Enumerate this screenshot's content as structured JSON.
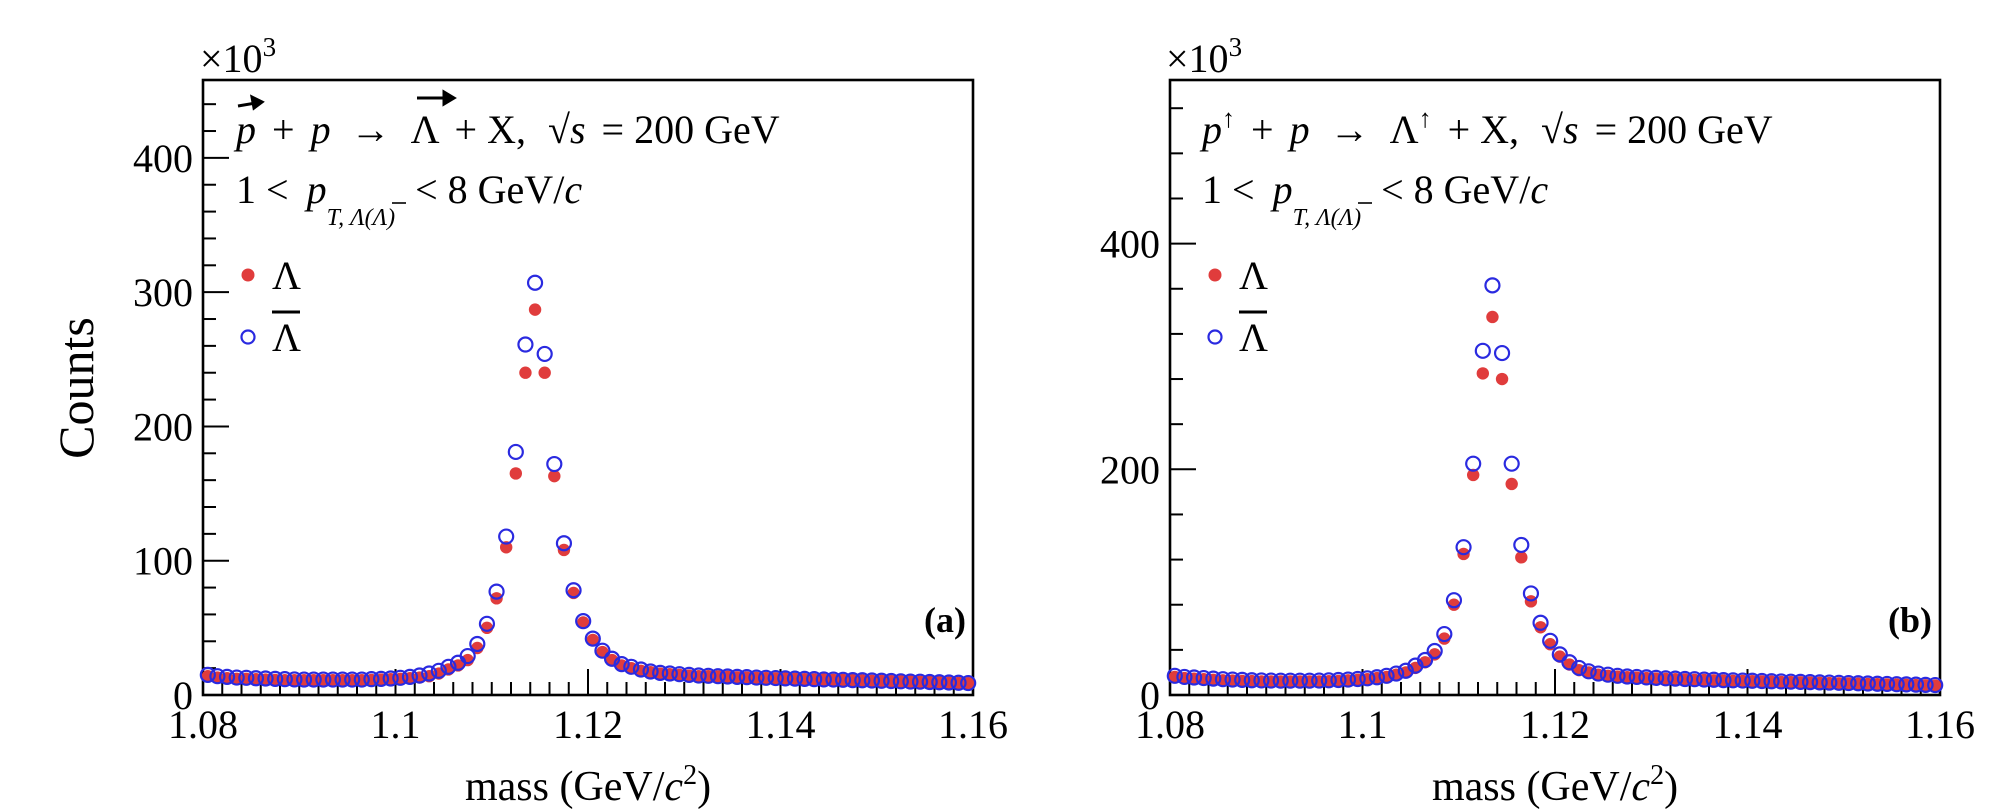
{
  "chart_data": [
    {
      "type": "scatter",
      "panel_label": "(a)",
      "multiplier": "×10",
      "multiplier_exp": "3",
      "ylabel": "Counts",
      "xlabel_main": "mass (GeV/",
      "xlabel_italic": "c",
      "xlabel_exp": "2",
      "xlabel_close": ")",
      "annotation1": {
        "p1": "p",
        "plus1": "+",
        "p2": "p",
        "arrow": "→",
        "lam": "Λ",
        "rest": "+ X,",
        "sqrt": "√",
        "s": "s",
        "energy": "= 200 GeV"
      },
      "annotation2": {
        "pre": "1 <",
        "p": "p",
        "sub": "T, Λ(Λ)",
        "post": "< 8 GeV/",
        "c": "c"
      },
      "xlim": [
        1.08,
        1.16
      ],
      "ylim": [
        0,
        458
      ],
      "xticks": [
        1.08,
        1.1,
        1.12,
        1.14,
        1.16
      ],
      "xtick_labels": [
        "1.08",
        "1.1",
        "1.12",
        "1.14",
        "1.16"
      ],
      "yticks": [
        0,
        100,
        200,
        300,
        400
      ],
      "ytick_labels": [
        "0",
        "100",
        "200",
        "300",
        "400"
      ],
      "legend": {
        "position": "top-left",
        "entries": [
          "Λ",
          "Λ"
        ]
      },
      "x": [
        1.0805,
        1.0815,
        1.0825,
        1.0835,
        1.0845,
        1.0855,
        1.0865,
        1.0875,
        1.0885,
        1.0895,
        1.0905,
        1.0915,
        1.0925,
        1.0935,
        1.0945,
        1.0955,
        1.0965,
        1.0975,
        1.0985,
        1.0995,
        1.1005,
        1.1015,
        1.1025,
        1.1035,
        1.1045,
        1.1055,
        1.1065,
        1.1075,
        1.1085,
        1.1095,
        1.1105,
        1.1115,
        1.1125,
        1.1135,
        1.1145,
        1.1155,
        1.1165,
        1.1175,
        1.1185,
        1.1195,
        1.1205,
        1.1215,
        1.1225,
        1.1235,
        1.1245,
        1.1255,
        1.1265,
        1.1275,
        1.1285,
        1.1295,
        1.1305,
        1.1315,
        1.1325,
        1.1335,
        1.1345,
        1.1355,
        1.1365,
        1.1375,
        1.1385,
        1.1395,
        1.1405,
        1.1415,
        1.1425,
        1.1435,
        1.1445,
        1.1455,
        1.1465,
        1.1475,
        1.1485,
        1.1495,
        1.1505,
        1.1515,
        1.1525,
        1.1535,
        1.1545,
        1.1555,
        1.1565,
        1.1575,
        1.1585,
        1.1595
      ],
      "series": [
        {
          "name": "Λ",
          "style": "filled",
          "color": "#e03c3c",
          "values": [
            14,
            13,
            12.5,
            12,
            12,
            11.8,
            11.5,
            11.2,
            11,
            11,
            11,
            11,
            11,
            11,
            11,
            11,
            11,
            11.2,
            11.5,
            11.8,
            12,
            12.5,
            13,
            14,
            16,
            19,
            22,
            26,
            35,
            50,
            72,
            110,
            165,
            240,
            287,
            240,
            163,
            108,
            76,
            54,
            41,
            32,
            26,
            22,
            20,
            18,
            17,
            16,
            15.5,
            15,
            14.5,
            14,
            14,
            13.8,
            13.5,
            13.2,
            13,
            12.8,
            12.6,
            12.4,
            12.2,
            12,
            11.8,
            11.6,
            11.5,
            11.3,
            11.2,
            11,
            10.8,
            10.6,
            10.5,
            10.3,
            10.2,
            10,
            9.8,
            9.6,
            9.4,
            9.2,
            9,
            8.8
          ]
        },
        {
          "name": "Λ",
          "style": "open",
          "color": "#2a2ae0",
          "values": [
            15,
            14,
            13.5,
            13,
            12.8,
            12.5,
            12.3,
            12,
            11.8,
            11.6,
            11.5,
            11.5,
            11.5,
            11.5,
            11.5,
            11.5,
            11.5,
            11.8,
            12,
            12.3,
            12.8,
            13.5,
            14.5,
            16,
            18,
            21,
            24,
            29,
            38,
            53,
            77,
            118,
            181,
            261,
            307,
            254,
            172,
            113,
            78,
            55,
            42,
            33,
            27,
            23,
            21,
            19,
            17.5,
            16.5,
            16,
            15.5,
            15,
            14.5,
            14.3,
            14,
            13.8,
            13.5,
            13.3,
            13,
            12.8,
            12.6,
            12.4,
            12.2,
            12,
            11.8,
            11.6,
            11.5,
            11.3,
            11.1,
            11,
            10.8,
            10.6,
            10.4,
            10.2,
            10,
            9.9,
            9.7,
            9.5,
            9.3,
            9.1,
            8.9
          ]
        }
      ]
    },
    {
      "type": "scatter",
      "panel_label": "(b)",
      "multiplier": "×10",
      "multiplier_exp": "3",
      "ylabel": "",
      "xlabel_main": "mass (GeV/",
      "xlabel_italic": "c",
      "xlabel_exp": "2",
      "xlabel_close": ")",
      "annotation1": {
        "p1": "p",
        "up1": "↑",
        "plus1": "+",
        "p2": "p",
        "arrow": "→",
        "lam": "Λ",
        "up2": "↑",
        "rest": "+ X,",
        "sqrt": "√",
        "s": "s",
        "energy": "= 200 GeV"
      },
      "annotation2": {
        "pre": "1 <",
        "p": "p",
        "sub": "T, Λ(Λ)",
        "post": "< 8 GeV/",
        "c": "c"
      },
      "xlim": [
        1.08,
        1.16
      ],
      "ylim": [
        0,
        545
      ],
      "xticks": [
        1.08,
        1.1,
        1.12,
        1.14,
        1.16
      ],
      "xtick_labels": [
        "1.08",
        "1.1",
        "1.12",
        "1.14",
        "1.16"
      ],
      "yticks": [
        0,
        200,
        400
      ],
      "ytick_labels": [
        "0",
        "200",
        "400"
      ],
      "legend": {
        "position": "top-left",
        "entries": [
          "Λ",
          "Λ"
        ]
      },
      "x": [
        1.0805,
        1.0815,
        1.0825,
        1.0835,
        1.0845,
        1.0855,
        1.0865,
        1.0875,
        1.0885,
        1.0895,
        1.0905,
        1.0915,
        1.0925,
        1.0935,
        1.0945,
        1.0955,
        1.0965,
        1.0975,
        1.0985,
        1.0995,
        1.1005,
        1.1015,
        1.1025,
        1.1035,
        1.1045,
        1.1055,
        1.1065,
        1.1075,
        1.1085,
        1.1095,
        1.1105,
        1.1115,
        1.1125,
        1.1135,
        1.1145,
        1.1155,
        1.1165,
        1.1175,
        1.1185,
        1.1195,
        1.1205,
        1.1215,
        1.1225,
        1.1235,
        1.1245,
        1.1255,
        1.1265,
        1.1275,
        1.1285,
        1.1295,
        1.1305,
        1.1315,
        1.1325,
        1.1335,
        1.1345,
        1.1355,
        1.1365,
        1.1375,
        1.1385,
        1.1395,
        1.1405,
        1.1415,
        1.1425,
        1.1435,
        1.1445,
        1.1455,
        1.1465,
        1.1475,
        1.1485,
        1.1495,
        1.1505,
        1.1515,
        1.1525,
        1.1535,
        1.1545,
        1.1555,
        1.1565,
        1.1575,
        1.1585,
        1.1595
      ],
      "series": [
        {
          "name": "Λ",
          "style": "filled",
          "color": "#e03c3c",
          "values": [
            16,
            15,
            14.5,
            14,
            13.5,
            13,
            12.8,
            12.5,
            12.3,
            12,
            12,
            12,
            12,
            12,
            12,
            12,
            12.2,
            12.5,
            13,
            13.5,
            14,
            15,
            16,
            18,
            20,
            24,
            29,
            36,
            50,
            80,
            125,
            195,
            285,
            335,
            280,
            187,
            122,
            83,
            60,
            45,
            34,
            27,
            22,
            20,
            18,
            17,
            16.3,
            15.8,
            15.4,
            15,
            14.6,
            14.3,
            14,
            13.8,
            13.5,
            13.3,
            13,
            12.8,
            12.6,
            12.4,
            12.2,
            12,
            11.8,
            11.6,
            11.4,
            11.2,
            11,
            10.8,
            10.6,
            10.4,
            10.2,
            10,
            9.8,
            9.6,
            9.4,
            9.2,
            9,
            8.8,
            8.6,
            8.4
          ]
        },
        {
          "name": "Λ",
          "style": "open",
          "color": "#2a2ae0",
          "values": [
            17,
            16,
            15.5,
            15,
            14.5,
            14,
            13.7,
            13.4,
            13.1,
            12.9,
            12.8,
            12.7,
            12.7,
            12.7,
            12.7,
            12.8,
            13,
            13.3,
            13.7,
            14.2,
            14.8,
            15.7,
            17,
            19,
            21.5,
            26,
            31,
            39,
            54,
            84,
            131,
            205,
            305,
            363,
            303,
            205,
            133,
            90,
            64,
            48,
            36,
            29,
            24,
            21,
            19,
            18,
            17,
            16.4,
            16,
            15.6,
            15.2,
            14.8,
            14.5,
            14.2,
            14,
            13.7,
            13.5,
            13.2,
            13,
            12.8,
            12.6,
            12.4,
            12.2,
            12,
            11.8,
            11.6,
            11.4,
            11.2,
            11,
            10.8,
            10.6,
            10.4,
            10.2,
            10,
            9.8,
            9.6,
            9.4,
            9.2,
            9,
            8.8
          ]
        }
      ]
    }
  ]
}
